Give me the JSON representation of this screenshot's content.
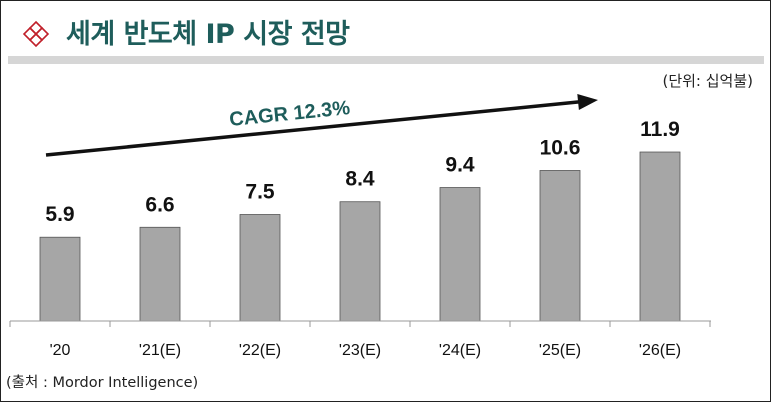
{
  "header": {
    "title": "세계 반도체 IP 시장 전망",
    "logo_icon": "diamond-lattice-icon",
    "accent_color": "#c0202a",
    "title_color": "#1e5d5b"
  },
  "unit_label": "(단위: 십억불)",
  "source": "(출처 : Mordor Intelligence)",
  "chart_data": {
    "type": "bar",
    "categories": [
      "'20",
      "'21(E)",
      "'22(E)",
      "'23(E)",
      "'24(E)",
      "'25(E)",
      "'26(E)"
    ],
    "values": [
      5.9,
      6.6,
      7.5,
      8.4,
      9.4,
      10.6,
      11.9
    ],
    "data_labels": [
      "5.9",
      "6.6",
      "7.5",
      "8.4",
      "9.4",
      "10.6",
      "11.9"
    ],
    "annotation": "CAGR 12.3%",
    "bar_color": "#a6a6a6",
    "annotation_color": "#1e5d5b",
    "ylim": [
      0,
      13
    ],
    "grid": false,
    "xlabel": "",
    "ylabel": ""
  }
}
